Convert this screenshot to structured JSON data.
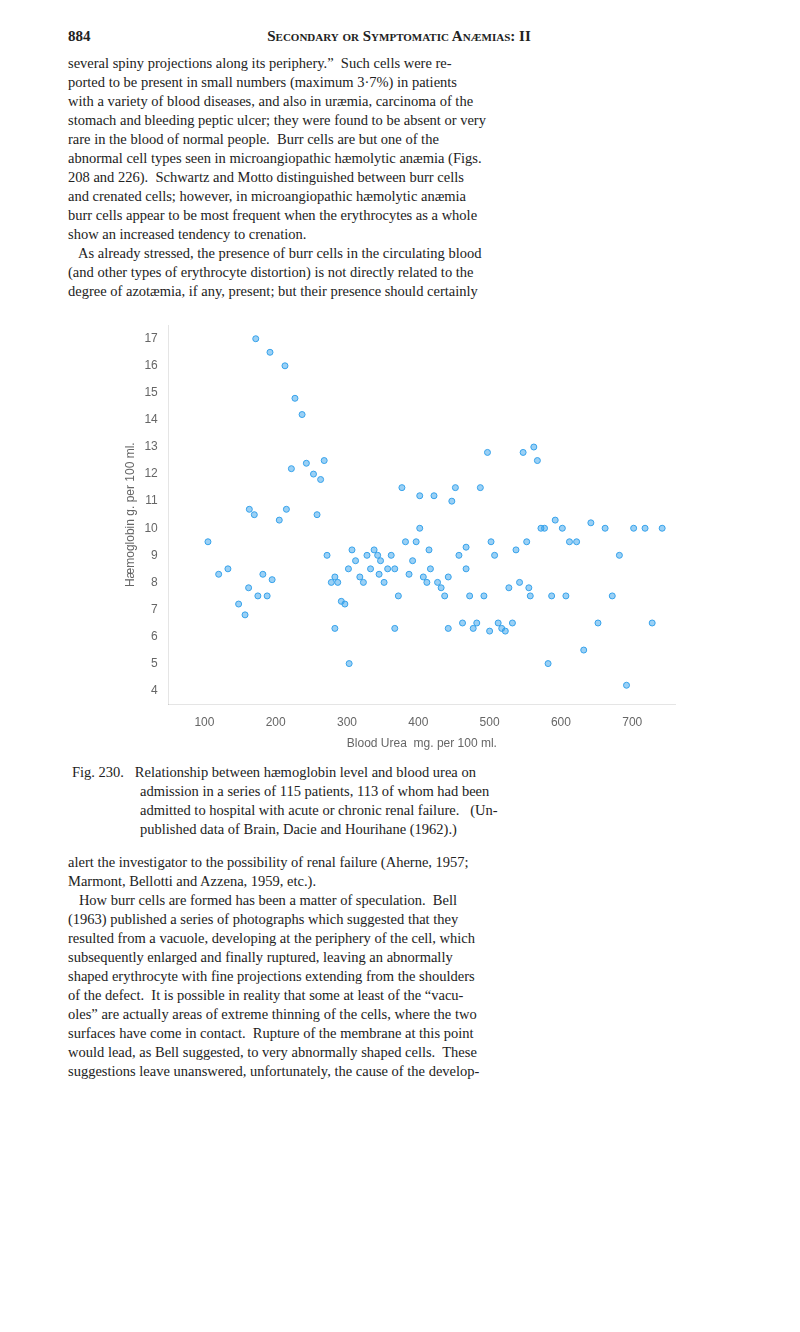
{
  "chart_data": {
    "type": "scatter",
    "title": "Secondary or Symptomatic Anæmias: II",
    "x_label": "Blood Urea  mg. per 100 ml.",
    "y_label": "Hæmoglobin g. per 100 ml.",
    "annotations": [
      [
        "884"
      ],
      [
        "several spiny projections along its periphery.”  Such cells were re-",
        "ported to be present in small numbers (maximum 3·7%) in patients",
        "with a variety of blood diseases, and also in uræmia, carcinoma of the",
        "stomach and bleeding peptic ulcer; they were found to be absent or very",
        "rare in the blood of normal people.  Burr cells are but one of the",
        "abnormal cell types seen in microangiopathic hæmolytic anæmia (Figs.",
        "208 and 226).  Schwartz and Motto distinguished between burr cells",
        "and crenated cells; however, in microangiopathic hæmolytic anæmia",
        "burr cells appear to be most frequent when the erythrocytes as a whole",
        "show an increased tendency to crenation.",
        "   As already stressed, the presence of burr cells in the circulating blood",
        "(and other types of erythrocyte distortion) is not directly related to the",
        "degree of azotæmia, if any, present; but their presence should certainly"
      ],
      [
        "Fig. 230.   Relationship between hæmoglobin level and blood urea on",
        "admission in a series of 115 patients, 113 of whom had been",
        "admitted to hospital with acute or chronic renal failure.   (Un-",
        "published data of Brain, Dacie and Hourihane (1962).)"
      ],
      [
        "alert the investigator to the possibility of renal failure (Aherne, 1957;",
        "Marmont, Bellotti and Azzena, 1959, etc.).",
        "   How burr cells are formed has been a matter of speculation.  Bell",
        "(1963) published a series of photographs which suggested that they",
        "resulted from a vacuole, developing at the periphery of the cell, which",
        "subsequently enlarged and finally ruptured, leaving an abnormally",
        "shaped erythrocyte with fine projections extending from the shoulders",
        "of the defect.  It is possible in reality that some at least of the “vacu-",
        "oles” are actually areas of extreme thinning of the cells, where the two",
        "surfaces have come in contact.  Rupture of the membrane at this point",
        "would lead, as Bell suggested, to very abnormally shaped cells.  These",
        "suggestions leave unanswered, unfortunately, the cause of the develop-"
      ]
    ],
    "x": [
      105,
      120,
      133,
      148,
      157,
      163,
      170,
      175,
      182,
      188,
      195,
      205,
      215,
      222,
      227,
      237,
      243,
      253,
      258,
      263,
      268,
      272,
      278,
      283,
      287,
      283,
      292,
      297,
      302,
      307,
      312,
      318,
      323,
      328,
      333,
      338,
      343,
      347,
      345,
      352,
      357,
      362,
      367,
      367,
      372,
      377,
      382,
      387,
      392,
      397,
      402,
      402,
      407,
      412,
      417,
      415,
      422,
      427,
      432,
      437,
      442,
      442,
      447,
      452,
      457,
      462,
      467,
      467,
      472,
      477,
      482,
      487,
      492,
      497,
      502,
      500,
      507,
      512,
      517,
      522,
      527,
      532,
      537,
      542,
      547,
      552,
      557,
      555,
      562,
      567,
      572,
      577,
      582,
      587,
      592,
      602,
      607,
      612,
      622,
      632,
      642,
      652,
      662,
      672,
      682,
      692,
      702,
      718,
      728,
      742,
      162,
      172,
      192,
      213,
      303
    ],
    "values": [
      9.5,
      8.3,
      8.5,
      7.2,
      6.8,
      10.7,
      10.5,
      7.5,
      8.3,
      7.5,
      8.1,
      10.3,
      10.7,
      12.2,
      14.8,
      14.2,
      12.4,
      12.0,
      10.5,
      11.8,
      12.5,
      9.0,
      8.0,
      8.2,
      8.0,
      6.3,
      7.3,
      7.2,
      8.5,
      9.2,
      8.8,
      8.2,
      8.0,
      9.0,
      8.5,
      9.2,
      9.0,
      8.8,
      8.3,
      8.0,
      8.5,
      9.0,
      8.5,
      6.3,
      7.5,
      11.5,
      9.5,
      8.3,
      8.8,
      9.5,
      10.0,
      11.2,
      8.2,
      8.0,
      8.5,
      9.2,
      11.2,
      8.0,
      7.8,
      7.5,
      6.3,
      8.2,
      11.0,
      11.5,
      9.0,
      6.5,
      8.5,
      9.3,
      7.5,
      6.3,
      6.5,
      11.5,
      7.5,
      12.8,
      9.5,
      6.2,
      9.0,
      6.5,
      6.3,
      6.2,
      7.8,
      6.5,
      9.2,
      8.0,
      12.8,
      9.5,
      7.5,
      7.8,
      13.0,
      12.5,
      10.0,
      10.0,
      5.0,
      7.5,
      10.3,
      10.0,
      7.5,
      9.5,
      9.5,
      5.5,
      10.2,
      6.5,
      10.0,
      7.5,
      9.0,
      4.2,
      10.0,
      10.0,
      6.5,
      10.0,
      7.8,
      17.0,
      16.5,
      16.0,
      5.0
    ],
    "xlim": [
      50,
      760
    ],
    "ylim": [
      3.5,
      17.5
    ],
    "xticks": [
      100,
      200,
      300,
      400,
      500,
      600,
      700
    ],
    "yticks": [
      4,
      5,
      6,
      7,
      8,
      9,
      10,
      11,
      12,
      13,
      14,
      15,
      16,
      17
    ],
    "grid": false
  }
}
